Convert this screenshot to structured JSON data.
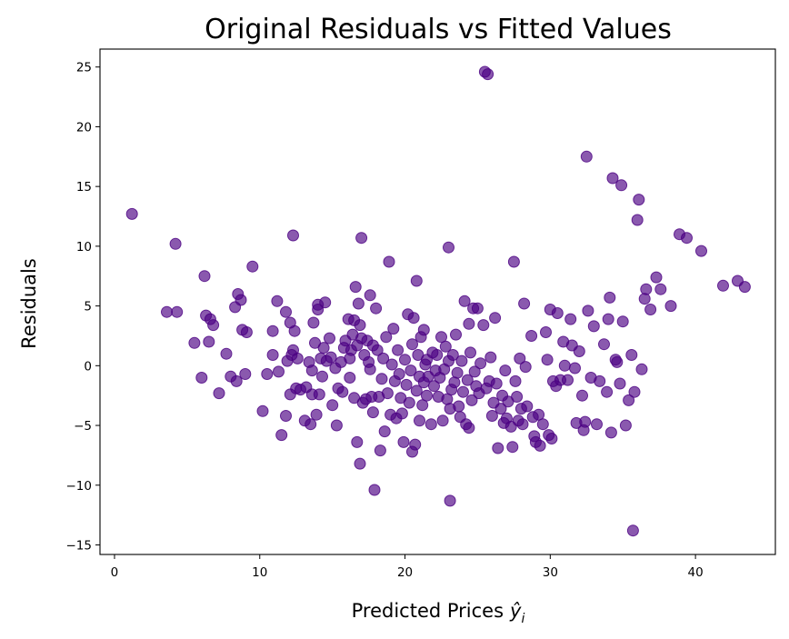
{
  "chart_data": {
    "type": "scatter",
    "title": "Original Residuals vs Fitted Values",
    "xlabel": "Predicted Prices",
    "xlabel_math_symbol": "ŷ",
    "xlabel_math_subscript": "i",
    "ylabel": "Residuals",
    "xlim": [
      -1.0,
      45.5
    ],
    "ylim": [
      -15.8,
      26.5
    ],
    "xticks": [
      0,
      10,
      20,
      30,
      40
    ],
    "yticks": [
      -15,
      -10,
      -5,
      0,
      5,
      10,
      15,
      20,
      25
    ],
    "xtick_labels": [
      "0",
      "10",
      "20",
      "30",
      "40"
    ],
    "ytick_labels": [
      "−15",
      "−10",
      "−5",
      "0",
      "5",
      "10",
      "15",
      "20",
      "25"
    ],
    "grid": false,
    "marker_color": "#4b0082",
    "marker_alpha": 0.65,
    "points": [
      [
        1.2,
        12.7
      ],
      [
        4.2,
        10.2
      ],
      [
        3.6,
        4.5
      ],
      [
        4.3,
        4.5
      ],
      [
        5.5,
        1.9
      ],
      [
        6.0,
        -1.0
      ],
      [
        6.2,
        7.5
      ],
      [
        6.3,
        4.2
      ],
      [
        6.5,
        2.0
      ],
      [
        6.6,
        3.9
      ],
      [
        6.8,
        3.4
      ],
      [
        7.2,
        -2.3
      ],
      [
        7.7,
        1.0
      ],
      [
        8.0,
        -0.9
      ],
      [
        8.3,
        4.9
      ],
      [
        8.4,
        -1.3
      ],
      [
        8.5,
        6.0
      ],
      [
        8.7,
        5.5
      ],
      [
        8.8,
        3.0
      ],
      [
        9.0,
        -0.7
      ],
      [
        9.1,
        2.8
      ],
      [
        9.5,
        8.3
      ],
      [
        10.2,
        -3.8
      ],
      [
        10.5,
        -0.7
      ],
      [
        10.9,
        2.9
      ],
      [
        10.9,
        0.9
      ],
      [
        11.2,
        5.4
      ],
      [
        11.3,
        -0.5
      ],
      [
        11.5,
        -5.8
      ],
      [
        11.8,
        -4.2
      ],
      [
        11.8,
        4.5
      ],
      [
        11.9,
        0.4
      ],
      [
        12.1,
        3.6
      ],
      [
        12.1,
        -2.4
      ],
      [
        12.2,
        0.9
      ],
      [
        12.3,
        10.9
      ],
      [
        12.3,
        1.3
      ],
      [
        12.4,
        2.9
      ],
      [
        12.5,
        -1.9
      ],
      [
        12.6,
        0.6
      ],
      [
        12.8,
        -2.0
      ],
      [
        13.1,
        -4.6
      ],
      [
        13.2,
        -1.8
      ],
      [
        13.4,
        0.3
      ],
      [
        13.5,
        -4.9
      ],
      [
        13.6,
        -0.4
      ],
      [
        13.6,
        -2.4
      ],
      [
        13.7,
        3.6
      ],
      [
        13.8,
        1.9
      ],
      [
        13.9,
        -4.1
      ],
      [
        14.0,
        4.7
      ],
      [
        14.0,
        5.1
      ],
      [
        14.1,
        -2.4
      ],
      [
        14.2,
        0.6
      ],
      [
        14.3,
        -0.9
      ],
      [
        14.4,
        1.5
      ],
      [
        14.5,
        5.3
      ],
      [
        14.6,
        0.4
      ],
      [
        14.8,
        2.3
      ],
      [
        14.9,
        0.7
      ],
      [
        15.0,
        -3.3
      ],
      [
        15.2,
        -0.2
      ],
      [
        15.3,
        -5.0
      ],
      [
        15.4,
        -1.9
      ],
      [
        15.6,
        0.3
      ],
      [
        15.7,
        -2.2
      ],
      [
        15.8,
        1.5
      ],
      [
        15.9,
        2.1
      ],
      [
        16.1,
        3.9
      ],
      [
        16.2,
        0.6
      ],
      [
        16.2,
        -1.0
      ],
      [
        16.3,
        1.3
      ],
      [
        16.4,
        2.6
      ],
      [
        16.5,
        3.8
      ],
      [
        16.5,
        -2.7
      ],
      [
        16.6,
        6.6
      ],
      [
        16.7,
        1.7
      ],
      [
        16.7,
        -6.4
      ],
      [
        16.8,
        5.2
      ],
      [
        16.9,
        -8.2
      ],
      [
        16.9,
        3.4
      ],
      [
        17.0,
        10.7
      ],
      [
        17.0,
        2.3
      ],
      [
        17.1,
        -3.1
      ],
      [
        17.2,
        0.9
      ],
      [
        17.3,
        -2.8
      ],
      [
        17.4,
        2.1
      ],
      [
        17.5,
        0.3
      ],
      [
        17.6,
        5.9
      ],
      [
        17.6,
        -0.3
      ],
      [
        17.7,
        -2.6
      ],
      [
        17.8,
        1.7
      ],
      [
        17.8,
        -3.9
      ],
      [
        17.9,
        -10.4
      ],
      [
        18.0,
        4.8
      ],
      [
        18.1,
        1.3
      ],
      [
        18.2,
        -2.6
      ],
      [
        18.3,
        -7.1
      ],
      [
        18.4,
        -1.1
      ],
      [
        18.5,
        0.6
      ],
      [
        18.6,
        -5.5
      ],
      [
        18.7,
        2.4
      ],
      [
        18.8,
        -2.3
      ],
      [
        18.9,
        8.7
      ],
      [
        19.0,
        -4.1
      ],
      [
        19.1,
        0.1
      ],
      [
        19.2,
        3.1
      ],
      [
        19.3,
        -1.3
      ],
      [
        19.4,
        -4.4
      ],
      [
        19.5,
        1.3
      ],
      [
        19.6,
        -0.7
      ],
      [
        19.7,
        -2.7
      ],
      [
        19.8,
        -4.0
      ],
      [
        19.9,
        -6.4
      ],
      [
        20.0,
        0.5
      ],
      [
        20.1,
        -1.6
      ],
      [
        20.2,
        4.3
      ],
      [
        20.3,
        -3.1
      ],
      [
        20.4,
        -0.4
      ],
      [
        20.5,
        1.8
      ],
      [
        20.5,
        -7.2
      ],
      [
        20.6,
        4.0
      ],
      [
        20.7,
        -6.6
      ],
      [
        20.8,
        7.1
      ],
      [
        20.8,
        -2.1
      ],
      [
        20.9,
        0.9
      ],
      [
        21.0,
        -0.9
      ],
      [
        21.0,
        -4.6
      ],
      [
        21.1,
        2.4
      ],
      [
        21.2,
        -3.3
      ],
      [
        21.3,
        3.0
      ],
      [
        21.3,
        -1.4
      ],
      [
        21.4,
        0.1
      ],
      [
        21.5,
        -2.5
      ],
      [
        21.5,
        0.5
      ],
      [
        21.6,
        -0.9
      ],
      [
        21.8,
        -4.9
      ],
      [
        21.9,
        1.1
      ],
      [
        22.0,
        -1.7
      ],
      [
        22.1,
        -0.4
      ],
      [
        22.2,
        0.9
      ],
      [
        22.3,
        -2.6
      ],
      [
        22.4,
        -1.0
      ],
      [
        22.5,
        2.4
      ],
      [
        22.6,
        -4.6
      ],
      [
        22.7,
        -0.3
      ],
      [
        22.8,
        1.6
      ],
      [
        22.9,
        -2.8
      ],
      [
        23.0,
        9.9
      ],
      [
        23.0,
        0.4
      ],
      [
        23.1,
        -11.3
      ],
      [
        23.1,
        -3.6
      ],
      [
        23.2,
        -2.0
      ],
      [
        23.3,
        0.9
      ],
      [
        23.4,
        -1.4
      ],
      [
        23.5,
        2.6
      ],
      [
        23.6,
        -0.6
      ],
      [
        23.7,
        -3.4
      ],
      [
        23.8,
        -4.3
      ],
      [
        23.9,
        0.4
      ],
      [
        24.0,
        -2.2
      ],
      [
        24.1,
        5.4
      ],
      [
        24.2,
        -4.9
      ],
      [
        24.3,
        -1.2
      ],
      [
        24.4,
        3.5
      ],
      [
        24.4,
        -5.2
      ],
      [
        24.5,
        1.1
      ],
      [
        24.6,
        -2.9
      ],
      [
        24.7,
        4.8
      ],
      [
        24.8,
        -0.5
      ],
      [
        24.9,
        -1.7
      ],
      [
        25.0,
        4.8
      ],
      [
        25.1,
        -2.3
      ],
      [
        25.2,
        0.2
      ],
      [
        25.4,
        3.4
      ],
      [
        25.5,
        24.6
      ],
      [
        25.7,
        24.4
      ],
      [
        25.6,
        -1.9
      ],
      [
        25.8,
        -1.3
      ],
      [
        25.9,
        0.7
      ],
      [
        26.0,
        -4.2
      ],
      [
        26.1,
        -3.1
      ],
      [
        26.2,
        4.0
      ],
      [
        26.3,
        -1.5
      ],
      [
        26.4,
        -6.9
      ],
      [
        26.6,
        -3.6
      ],
      [
        26.7,
        -2.5
      ],
      [
        26.8,
        -4.8
      ],
      [
        26.9,
        -0.4
      ],
      [
        27.0,
        -4.4
      ],
      [
        27.1,
        -3.0
      ],
      [
        27.3,
        -5.1
      ],
      [
        27.4,
        -6.8
      ],
      [
        27.5,
        8.7
      ],
      [
        27.6,
        -1.3
      ],
      [
        27.7,
        -2.6
      ],
      [
        27.8,
        -4.6
      ],
      [
        27.9,
        0.6
      ],
      [
        28.0,
        -3.6
      ],
      [
        28.1,
        -4.9
      ],
      [
        28.2,
        5.2
      ],
      [
        28.3,
        -0.1
      ],
      [
        28.4,
        -3.4
      ],
      [
        28.7,
        2.5
      ],
      [
        28.8,
        -4.3
      ],
      [
        28.9,
        -5.9
      ],
      [
        29.0,
        -6.4
      ],
      [
        29.2,
        -4.1
      ],
      [
        29.3,
        -6.7
      ],
      [
        29.5,
        -4.9
      ],
      [
        29.7,
        2.8
      ],
      [
        29.8,
        0.5
      ],
      [
        29.9,
        -5.8
      ],
      [
        30.0,
        4.7
      ],
      [
        30.1,
        -6.1
      ],
      [
        30.2,
        -1.3
      ],
      [
        30.4,
        -1.7
      ],
      [
        30.5,
        4.4
      ],
      [
        30.7,
        -1.2
      ],
      [
        30.9,
        2.0
      ],
      [
        31.0,
        0.0
      ],
      [
        31.2,
        -1.2
      ],
      [
        31.4,
        3.9
      ],
      [
        31.5,
        1.7
      ],
      [
        31.7,
        -0.2
      ],
      [
        31.8,
        -4.8
      ],
      [
        32.0,
        1.2
      ],
      [
        32.2,
        -2.5
      ],
      [
        32.3,
        -5.4
      ],
      [
        32.4,
        -4.7
      ],
      [
        32.5,
        17.5
      ],
      [
        32.6,
        4.6
      ],
      [
        32.8,
        -1.0
      ],
      [
        33.0,
        3.3
      ],
      [
        33.2,
        -4.9
      ],
      [
        33.4,
        -1.3
      ],
      [
        33.7,
        1.8
      ],
      [
        33.9,
        -2.2
      ],
      [
        34.0,
        3.9
      ],
      [
        34.1,
        5.7
      ],
      [
        34.2,
        -5.6
      ],
      [
        34.3,
        15.7
      ],
      [
        34.5,
        0.5
      ],
      [
        34.6,
        0.3
      ],
      [
        34.8,
        -1.5
      ],
      [
        34.9,
        15.1
      ],
      [
        35.0,
        3.7
      ],
      [
        35.2,
        -5.0
      ],
      [
        35.4,
        -2.9
      ],
      [
        35.6,
        0.9
      ],
      [
        35.7,
        -13.8
      ],
      [
        35.8,
        -2.2
      ],
      [
        36.0,
        12.2
      ],
      [
        36.1,
        13.9
      ],
      [
        36.3,
        -0.3
      ],
      [
        36.5,
        5.6
      ],
      [
        36.6,
        6.4
      ],
      [
        36.9,
        4.7
      ],
      [
        37.3,
        7.4
      ],
      [
        37.6,
        6.4
      ],
      [
        38.3,
        5.0
      ],
      [
        38.9,
        11.0
      ],
      [
        39.4,
        10.7
      ],
      [
        40.4,
        9.6
      ],
      [
        41.9,
        6.7
      ],
      [
        42.9,
        7.1
      ],
      [
        43.4,
        6.6
      ]
    ]
  }
}
